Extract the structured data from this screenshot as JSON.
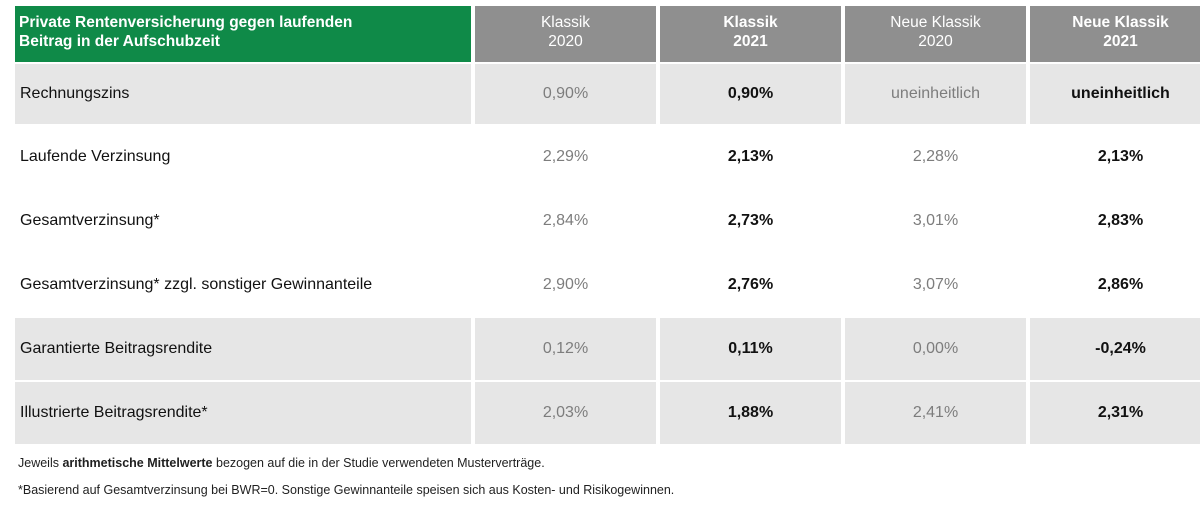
{
  "header": {
    "title": "Private Rentenversicherung gegen laufenden\nBeitrag in der Aufschubzeit",
    "columns": [
      "Klassik\n2020",
      "Klassik\n2021",
      "Neue Klassik\n2020",
      "Neue Klassik\n2021"
    ]
  },
  "rows": [
    {
      "label": "Rechnungszins",
      "values": [
        "0,90%",
        "0,90%",
        "uneinheitlich",
        "uneinheitlich"
      ]
    },
    {
      "label": "Laufende Verzinsung",
      "values": [
        "2,29%",
        "2,13%",
        "2,28%",
        "2,13%"
      ]
    },
    {
      "label": "Gesamtverzinsung*",
      "values": [
        "2,84%",
        "2,73%",
        "3,01%",
        "2,83%"
      ]
    },
    {
      "label": "Gesamtverzinsung* zzgl. sonstiger Gewinnanteile",
      "values": [
        "2,90%",
        "2,76%",
        "3,07%",
        "2,86%"
      ]
    },
    {
      "label": "Garantierte Beitragsrendite",
      "values": [
        "0,12%",
        "0,11%",
        "0,00%",
        "-0,24%"
      ]
    },
    {
      "label": "Illustrierte Beitragsrendite*",
      "values": [
        "2,03%",
        "1,88%",
        "2,41%",
        "2,31%"
      ]
    }
  ],
  "notes": {
    "note1_prefix": "Jeweils ",
    "note1_bold": "arithmetische Mittelwerte",
    "note1_suffix": " bezogen auf die in der Studie verwendeten Musterverträge.",
    "note2": "*Basierend auf Gesamtverzinsung bei BWR=0. Sonstige Gewinnanteile speisen sich aus Kosten- und Risikogewinnen."
  },
  "colors": {
    "title_bg": "#0f8a48",
    "header_bg": "#8f8f8f",
    "row_shade": "#e6e6e6"
  }
}
